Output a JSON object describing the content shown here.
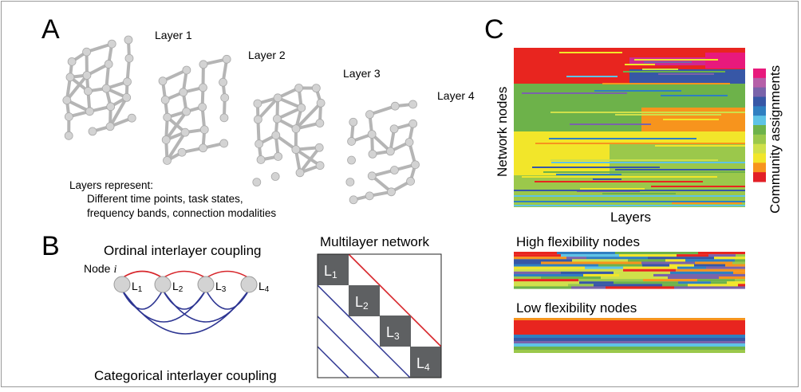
{
  "panel_a": {
    "letter": "A",
    "layers": [
      {
        "label": "Layer 1"
      },
      {
        "label": "Layer 2"
      },
      {
        "label": "Layer 3"
      },
      {
        "label": "Layer 4"
      }
    ],
    "caption_title": "Layers represent:",
    "caption_line1": "Different time points, task states,",
    "caption_line2": "frequency bands, connection modalities"
  },
  "panel_b": {
    "letter": "B",
    "ordinal_title": "Ordinal interlayer coupling",
    "categorical_title": "Categorical interlayer coupling",
    "node_label": "Node",
    "node_symbol": "i",
    "layer_nodes": [
      {
        "main": "L",
        "sub": "1"
      },
      {
        "main": "L",
        "sub": "2"
      },
      {
        "main": "L",
        "sub": "3"
      },
      {
        "main": "L",
        "sub": "4"
      }
    ],
    "multilayer_title": "Multilayer network",
    "blocks": [
      {
        "main": "L",
        "sub": "1"
      },
      {
        "main": "L",
        "sub": "2"
      },
      {
        "main": "L",
        "sub": "3"
      },
      {
        "main": "L",
        "sub": "4"
      }
    ]
  },
  "panel_c": {
    "letter": "C",
    "ylabel": "Network nodes",
    "xlabel": "Layers",
    "colorbar_label": "Community assignments",
    "high_title": "High flexibility nodes",
    "low_title": "Low flexibility nodes",
    "colorbar_colors": [
      "#e8197c",
      "#b65fa8",
      "#7a63aa",
      "#3757a6",
      "#2f7fc1",
      "#5ec3e6",
      "#6db24a",
      "#9bc84b",
      "#cfe04a",
      "#f2e62a",
      "#f7941d",
      "#e21f26"
    ]
  },
  "colors": {
    "network_edge": "#b5b5b5",
    "network_node": "#d3d3d3",
    "ordinal_edge": "#d7262b",
    "categorical_edge": "#2d3592",
    "block_fill": "#5e6062"
  }
}
